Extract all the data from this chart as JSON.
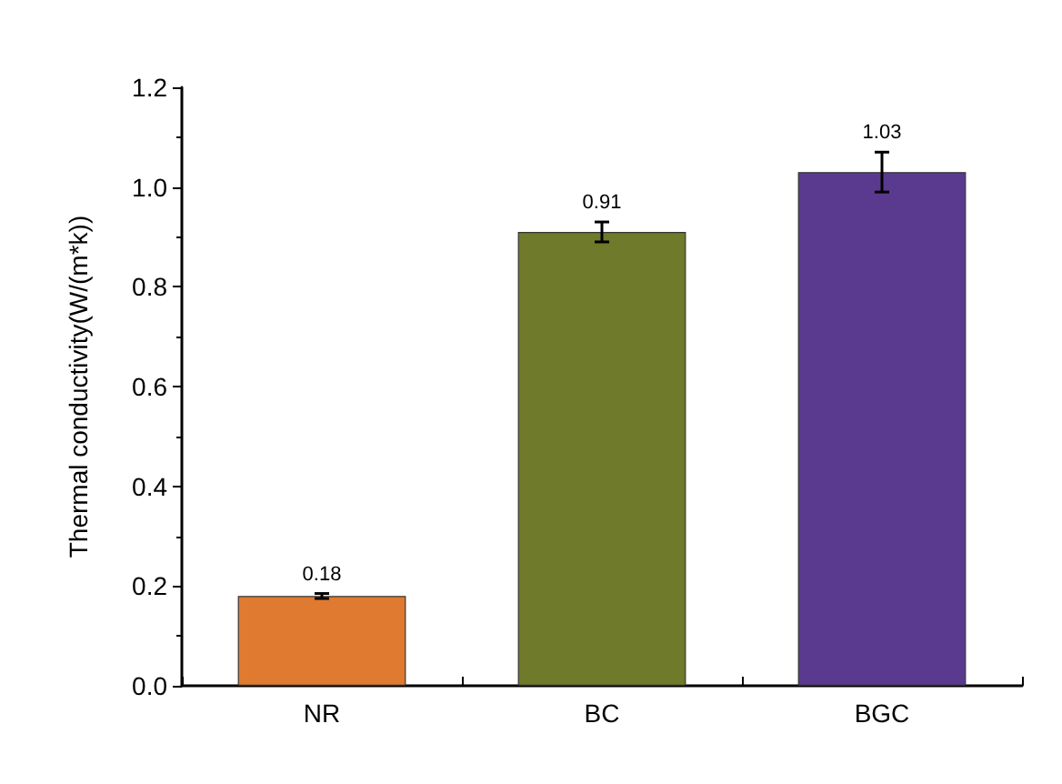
{
  "chart_data": {
    "type": "bar",
    "ylabel": "Thermal conductivity(W/(m*k))",
    "categories": [
      "NR",
      "BC",
      "BGC"
    ],
    "values": [
      0.18,
      0.91,
      1.03
    ],
    "errors": [
      0.005,
      0.02,
      0.04
    ],
    "colors": [
      "#e07a30",
      "#6f7a2a",
      "#5a3a8e"
    ],
    "ylim": [
      0,
      1.2
    ],
    "yticks": [
      {
        "value": 0,
        "label": "0.0"
      },
      0.2,
      0.4,
      0.6,
      0.8,
      {
        "value": 1,
        "label": "1.0"
      },
      1.2
    ],
    "data_labels": true
  }
}
